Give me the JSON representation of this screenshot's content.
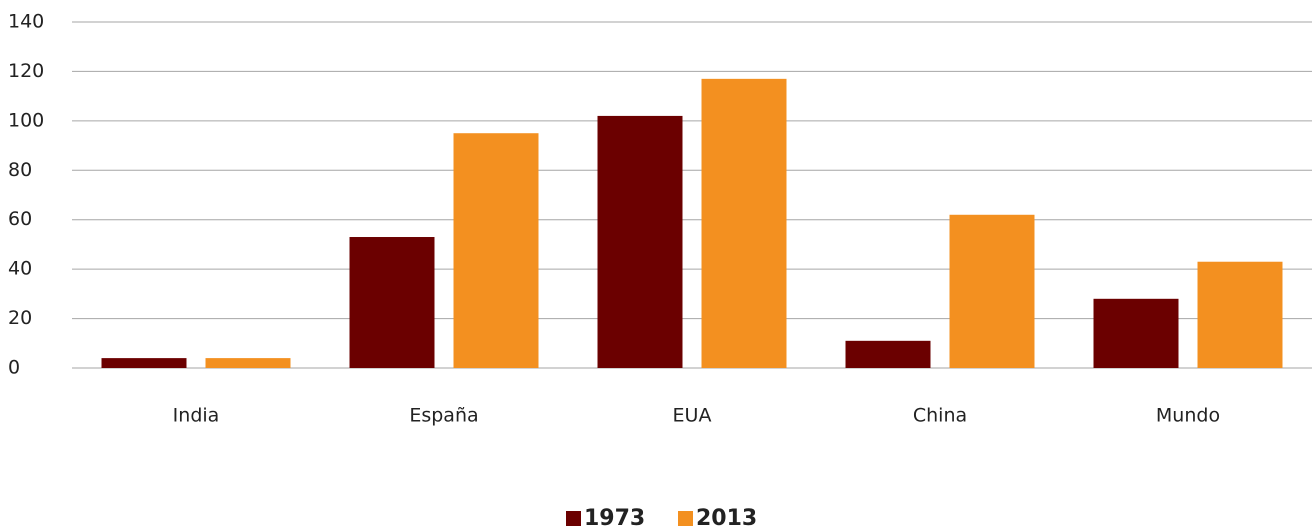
{
  "chart_data": {
    "type": "bar",
    "categories": [
      "India",
      "España",
      "EUA",
      "China",
      "Mundo"
    ],
    "series": [
      {
        "name": "1973",
        "color": "#6b0000",
        "values": [
          4,
          53,
          102,
          11,
          28
        ]
      },
      {
        "name": "2013",
        "color": "#f39020",
        "values": [
          4,
          95,
          117,
          62,
          43
        ]
      }
    ],
    "ylim": [
      0,
      140
    ],
    "yticks": [
      0,
      20,
      40,
      60,
      80,
      100,
      120,
      140
    ],
    "grid": true,
    "legend": "bottom"
  }
}
